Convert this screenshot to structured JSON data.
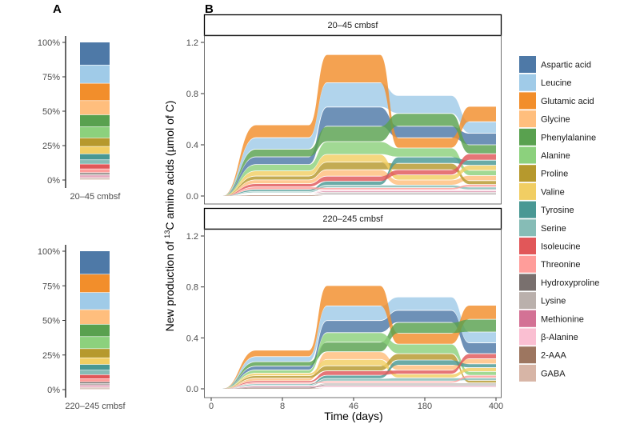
{
  "panel_labels": {
    "a": "A",
    "b": "B"
  },
  "colors": {
    "Aspartic acid": "#4E79A7",
    "Leucine": "#A0CBE8",
    "Glutamic acid": "#F28E2B",
    "Glycine": "#FFBE7D",
    "Phenylalanine": "#59A14F",
    "Alanine": "#8CD17D",
    "Proline": "#B6992D",
    "Valine": "#F1CE63",
    "Tyrosine": "#499894",
    "Serine": "#86BCB6",
    "Isoleucine": "#E15759",
    "Threonine": "#FF9D9A",
    "Hydroxyproline": "#79706E",
    "Lysine": "#BAB0AC",
    "Methionine": "#D37295",
    "β-Alanine": "#FABFD2",
    "2-AAA": "#9D7660",
    "GABA": "#D7B5A6"
  },
  "chart_data": [
    {
      "type": "bar",
      "stacked": true,
      "panel": "A",
      "yticks": [
        "0%",
        "25%",
        "50%",
        "75%",
        "100%"
      ],
      "ylim": [
        0,
        100
      ],
      "bars": [
        {
          "category": "20–45 cmbsf",
          "values": {
            "Aspartic acid": 16.6,
            "Leucine": 13.3,
            "Glutamic acid": 12.6,
            "Glycine": 10.3,
            "Phenylalanine": 8.7,
            "Alanine": 8.1,
            "Proline": 6.2,
            "Valine": 5.4,
            "Tyrosine": 4.3,
            "Serine": 3.1,
            "Isoleucine": 3.5,
            "Threonine": 2.7,
            "Hydroxyproline": 1.0,
            "Lysine": 1.0,
            "Methionine": 1.0,
            "β-Alanine": 0.8,
            "2-AAA": 0.7,
            "GABA": 0.7
          }
        },
        {
          "category": "220–245 cmbsf",
          "values": {
            "Aspartic acid": 16.8,
            "Glutamic acid": 13.2,
            "Leucine": 12.4,
            "Glycine": 10.6,
            "Phenylalanine": 8.9,
            "Alanine": 8.7,
            "Proline": 6.6,
            "Valine": 4.8,
            "Tyrosine": 4.1,
            "Serine": 3.3,
            "Isoleucine": 2.9,
            "Threonine": 2.3,
            "Hydroxyproline": 1.2,
            "Lysine": 1.2,
            "Methionine": 0.9,
            "β-Alanine": 0.8,
            "2-AAA": 0.7,
            "GABA": 0.6
          }
        }
      ]
    },
    {
      "type": "area",
      "subtype": "alluvial",
      "panel": "B",
      "xlabel": "Time (days)",
      "ylabel_prefix": "New production of ",
      "ylabel_sup": "13",
      "ylabel_suffix": "C amino acids (µmol of C)",
      "x": [
        "0",
        "8",
        "46",
        "180",
        "400"
      ],
      "yticks": [
        "0.0",
        "0.4",
        "0.8",
        "1.2"
      ],
      "ylim": [
        0,
        1.2
      ],
      "legend": "right",
      "series_order": [
        "Aspartic acid",
        "Leucine",
        "Glutamic acid",
        "Glycine",
        "Phenylalanine",
        "Alanine",
        "Proline",
        "Valine",
        "Tyrosine",
        "Serine",
        "Isoleucine",
        "Threonine",
        "Hydroxyproline",
        "Lysine",
        "Methionine",
        "β-Alanine",
        "2-AAA",
        "GABA"
      ],
      "facets": [
        {
          "title": "20–45 cmbsf",
          "series": {
            "Aspartic acid": [
              0,
              0.06,
              0.15,
              0.09,
              0.09
            ],
            "Leucine": [
              0,
              0.09,
              0.19,
              0.14,
              0.09
            ],
            "Glutamic acid": [
              0,
              0.1,
              0.22,
              0.08,
              0.12
            ],
            "Glycine": [
              0,
              0.03,
              0.05,
              0.04,
              0.04
            ],
            "Phenylalanine": [
              0,
              0.06,
              0.12,
              0.1,
              0.07
            ],
            "Alanine": [
              0,
              0.05,
              0.1,
              0.07,
              0.04
            ],
            "Proline": [
              0,
              0.03,
              0.06,
              0.05,
              0.03
            ],
            "Valine": [
              0,
              0.04,
              0.06,
              0.04,
              0.04
            ],
            "Tyrosine": [
              0,
              0.015,
              0.03,
              0.05,
              0.04
            ],
            "Serine": [
              0,
              0.01,
              0.02,
              0.02,
              0.02
            ],
            "Isoleucine": [
              0,
              0.025,
              0.04,
              0.04,
              0.05
            ],
            "Threonine": [
              0,
              0.02,
              0.015,
              0.015,
              0.02
            ],
            "Hydroxyproline": [
              0,
              0.005,
              0.01,
              0.01,
              0.01
            ],
            "Lysine": [
              0,
              0.005,
              0.01,
              0.01,
              0.01
            ],
            "Methionine": [
              0,
              0.005,
              0.01,
              0.01,
              0.01
            ],
            "β-Alanine": [
              0,
              0.005,
              0.01,
              0.01,
              0.01
            ],
            "2-AAA": [
              0,
              0.003,
              0.005,
              0.005,
              0.005
            ],
            "GABA": [
              0,
              0.003,
              0.005,
              0.005,
              0.005
            ]
          }
        },
        {
          "title": "220–245 cmbsf",
          "series": {
            "Aspartic acid": [
              0,
              0.03,
              0.095,
              0.095,
              0.085
            ],
            "Leucine": [
              0,
              0.04,
              0.115,
              0.105,
              0.085
            ],
            "Glutamic acid": [
              0,
              0.05,
              0.16,
              0.085,
              0.11
            ],
            "Glycine": [
              0,
              0.02,
              0.06,
              0.04,
              0.04
            ],
            "Phenylalanine": [
              0,
              0.035,
              0.075,
              0.085,
              0.1
            ],
            "Alanine": [
              0,
              0.025,
              0.075,
              0.075,
              0.03
            ],
            "Proline": [
              0,
              0.02,
              0.04,
              0.05,
              0.02
            ],
            "Valine": [
              0,
              0.02,
              0.05,
              0.03,
              0.03
            ],
            "Tyrosine": [
              0,
              0.01,
              0.025,
              0.04,
              0.03
            ],
            "Serine": [
              0,
              0.008,
              0.02,
              0.025,
              0.02
            ],
            "Isoleucine": [
              0,
              0.015,
              0.035,
              0.03,
              0.04
            ],
            "Threonine": [
              0,
              0.01,
              0.015,
              0.015,
              0.02
            ],
            "Hydroxyproline": [
              0,
              0.004,
              0.01,
              0.01,
              0.01
            ],
            "Lysine": [
              0,
              0.004,
              0.01,
              0.01,
              0.01
            ],
            "Methionine": [
              0,
              0.004,
              0.008,
              0.008,
              0.008
            ],
            "β-Alanine": [
              0,
              0.004,
              0.008,
              0.008,
              0.008
            ],
            "2-AAA": [
              0,
              0.002,
              0.005,
              0.005,
              0.005
            ],
            "GABA": [
              0,
              0.002,
              0.005,
              0.005,
              0.005
            ]
          }
        }
      ]
    }
  ]
}
